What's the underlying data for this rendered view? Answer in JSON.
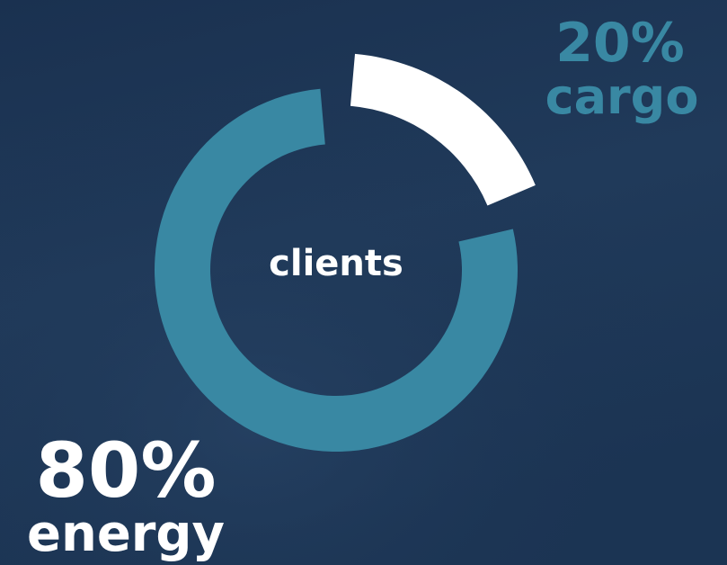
{
  "chart_data": {
    "type": "donut",
    "center_label": "clients",
    "categories": [
      "energy",
      "cargo"
    ],
    "values": [
      80,
      20
    ],
    "value_labels": [
      "80%",
      "20%"
    ],
    "colors": [
      "#3988a3",
      "#ffffff"
    ]
  }
}
